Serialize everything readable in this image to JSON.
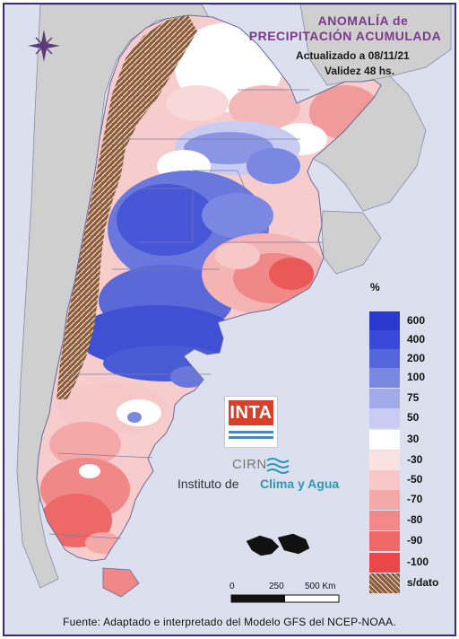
{
  "title": {
    "line1": "ANOMALÍA de",
    "line2": "PRECIPITACIÓN ACUMULADA"
  },
  "updated": "Actualizado a 08/11/21",
  "validity": "Validez 48 hs.",
  "legend": {
    "unit": "%",
    "items": [
      {
        "label": "600",
        "color": "#2a3ad0"
      },
      {
        "label": "400",
        "color": "#3a4ad8"
      },
      {
        "label": "200",
        "color": "#5566dc"
      },
      {
        "label": "100",
        "color": "#7a88e2"
      },
      {
        "label": "75",
        "color": "#a2aaea"
      },
      {
        "label": "50",
        "color": "#c8ccf2"
      },
      {
        "label": "30",
        "color": "#ffffff"
      },
      {
        "label": "-30",
        "color": "#fbe2e2"
      },
      {
        "label": "-50",
        "color": "#f8c8c8"
      },
      {
        "label": "-70",
        "color": "#f5a8a8"
      },
      {
        "label": "-80",
        "color": "#f28888"
      },
      {
        "label": "-90",
        "color": "#ee6868"
      },
      {
        "label": "-100",
        "color": "#ea4848"
      },
      {
        "label": "s/dato",
        "color": "#8a5a3a"
      }
    ]
  },
  "scale": {
    "label_0": "0",
    "label_250": "250",
    "label_500": "500 Km"
  },
  "logo": {
    "inta": "INTA",
    "cirn": "CIRN",
    "institute_a": "Instituto de",
    "institute_b": "Clima y Agua"
  },
  "source": "Fuente: Adaptado e interpretado del Modelo GFS del NCEP-NOAA.",
  "icons": [
    "compass-rose-icon",
    "water-waves-icon"
  ]
}
